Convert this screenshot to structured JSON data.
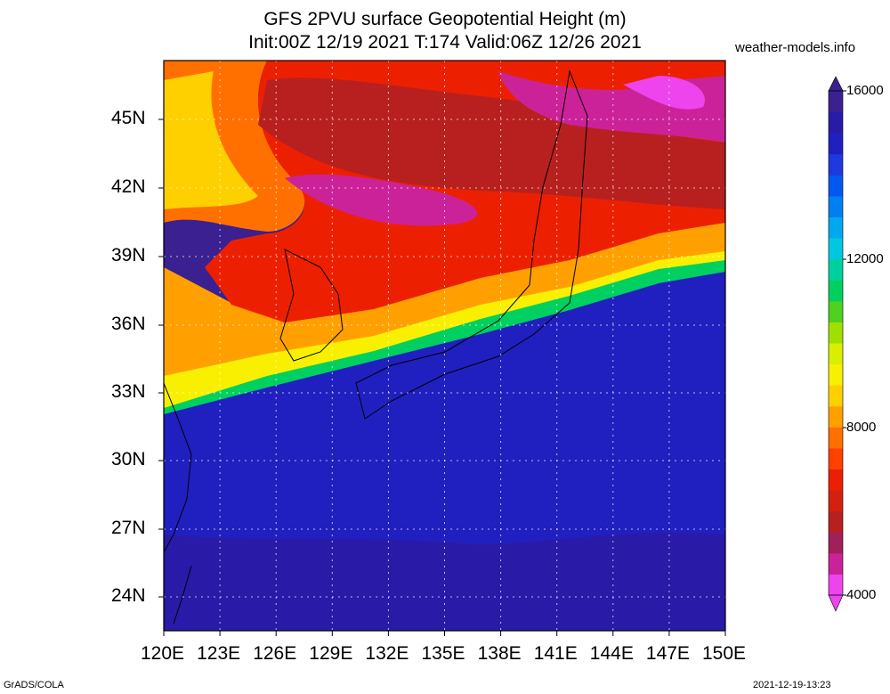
{
  "title": {
    "line1": "GFS 2PVU surface Geopotential Height (m)",
    "line2": "Init:00Z 12/19 2021 T:174 Valid:06Z 12/26 2021"
  },
  "credit": "weather-models.info",
  "lat_labels": [
    "45N",
    "42N",
    "39N",
    "36N",
    "33N",
    "30N",
    "27N",
    "24N"
  ],
  "lon_labels": [
    "120E",
    "123E",
    "126E",
    "129E",
    "132E",
    "135E",
    "138E",
    "141E",
    "144E",
    "147E",
    "150E"
  ],
  "colorbar": {
    "labels": [
      "16000",
      "12000",
      "8000",
      "4000"
    ],
    "colors": [
      "#ee44ee",
      "#cc2299",
      "#a0205a",
      "#b82020",
      "#d42010",
      "#ec2000",
      "#ff4000",
      "#ff7000",
      "#ffa000",
      "#ffd000",
      "#f8f000",
      "#d8f000",
      "#a0e000",
      "#50d020",
      "#00d060",
      "#00d0a0",
      "#00c8e0",
      "#00a8f0",
      "#0080f0",
      "#0058f0",
      "#2038e0",
      "#2020c0",
      "#2a1aa8",
      "#3a2090"
    ]
  },
  "footer": {
    "left": "GrADS/COLA",
    "right": "2021-12-19-13:23"
  }
}
